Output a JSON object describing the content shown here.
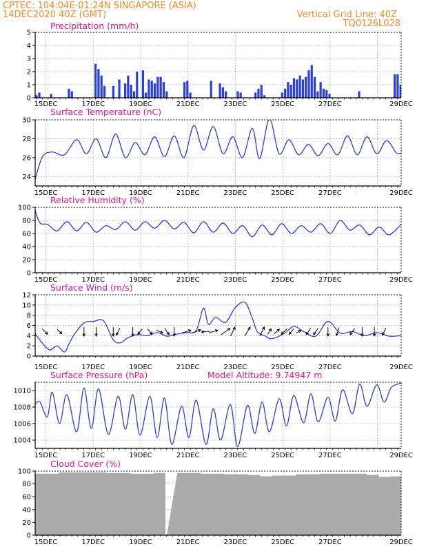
{
  "header": {
    "line1_left": "CPTEC:   104:04E-01:24N   SINGAPORE (ASIA)",
    "line2_left": "14DEC2020 40Z (GMT)",
    "line1_right": "Vertical Grid Line: 40Z",
    "line2_right": "TQ0126L028"
  },
  "colors": {
    "header": "#f08a2a",
    "title": "#e0148c",
    "series": "#2b3fd9",
    "cloud": "#ababab",
    "arrow": "#000000"
  },
  "x_tick_labels": [
    "15DEC",
    "17DEC",
    "19DEC",
    "21DEC",
    "23DEC",
    "25DEC",
    "27DEC",
    "29DEC"
  ],
  "chart_data": [
    {
      "type": "bar",
      "title": "Precipitation (mm/h)",
      "ylim": [
        0,
        5
      ],
      "yticks": [
        0,
        1,
        2,
        3,
        4,
        5
      ],
      "x_start": "14DEC2020 00Z",
      "x_step_hours": 3,
      "values": [
        0.2,
        0.4,
        0,
        0,
        0,
        0.3,
        0,
        0,
        0,
        0,
        0,
        0.7,
        0.5,
        0,
        0,
        0,
        0,
        0,
        0,
        0,
        2.6,
        2.2,
        1.7,
        0.9,
        0,
        0,
        0.9,
        0,
        1.4,
        0,
        1.1,
        1.7,
        1.0,
        0.5,
        2.0,
        0,
        2.1,
        0.4,
        1.4,
        1.3,
        1.1,
        1.6,
        1.6,
        1.2,
        0.5,
        0,
        0,
        0,
        0,
        0,
        1.2,
        1.3,
        0.4,
        0,
        0,
        0,
        0,
        0,
        0,
        1.3,
        0,
        0,
        1.1,
        0.8,
        0.5,
        0,
        0,
        0,
        0.5,
        0.4,
        0,
        0,
        0,
        0,
        0.4,
        0.7,
        1.0,
        0.2,
        0,
        0,
        0,
        0,
        0,
        0.4,
        0.7,
        1.2,
        1.0,
        1.5,
        1.4,
        1.7,
        1.4,
        1.6,
        2.1,
        2.5,
        1.6,
        0.5,
        1.2,
        0.7,
        0.6,
        0.3,
        0,
        0,
        0,
        0,
        0,
        0,
        0,
        0,
        0,
        0.5,
        0,
        0,
        0,
        0,
        0,
        0,
        0,
        0,
        0,
        0,
        0,
        1.8,
        1.8,
        1.0,
        0,
        0,
        0,
        0,
        0,
        0,
        0,
        0,
        0,
        0,
        0,
        0,
        0,
        0,
        0,
        0,
        0,
        0,
        0,
        0,
        0,
        0,
        0,
        0,
        0,
        0,
        0,
        0,
        0,
        0,
        0,
        0,
        0,
        0,
        0,
        0,
        0,
        0,
        0,
        0,
        0,
        0,
        0,
        0,
        0,
        0,
        0,
        0,
        0,
        0,
        0
      ]
    },
    {
      "type": "line",
      "title": "Surface Temperature (nC)",
      "ylim": [
        23,
        30
      ],
      "yticks": [
        24,
        26,
        28,
        30
      ],
      "x": [
        0,
        0.3,
        0.7,
        1.2,
        1.7,
        2.1,
        2.5,
        2.9,
        3.3,
        3.7,
        4.1,
        4.5,
        4.9,
        5.3,
        5.7,
        6.1,
        6.5,
        6.9,
        7.3,
        7.7,
        8.1,
        8.5,
        8.9,
        9.2,
        9.6,
        10.0,
        10.4,
        10.8,
        11.2,
        11.6,
        12.0,
        12.4,
        12.8,
        13.2,
        13.6,
        14.0,
        14.4,
        14.8,
        15.0
      ],
      "values": [
        23.7,
        26.1,
        26.6,
        26.3,
        27.9,
        26.4,
        28.0,
        26.0,
        28.5,
        26.0,
        27.6,
        26.3,
        28.2,
        26.1,
        28.3,
        26.0,
        29.4,
        26.8,
        29.3,
        26.4,
        28.2,
        26.0,
        29.1,
        25.9,
        30.1,
        26.4,
        27.9,
        26.3,
        27.4,
        26.2,
        27.5,
        26.3,
        28.3,
        26.3,
        28.2,
        26.4,
        27.8,
        26.5,
        26.5
      ]
    },
    {
      "type": "line",
      "title": "Relative Humidity (%)",
      "ylim": [
        0,
        100
      ],
      "yticks": [
        0,
        20,
        40,
        60,
        80,
        100
      ],
      "x": [
        0,
        0.2,
        0.5,
        0.9,
        1.3,
        1.7,
        2.1,
        2.5,
        2.9,
        3.3,
        3.7,
        4.1,
        4.5,
        4.9,
        5.3,
        5.7,
        6.1,
        6.5,
        6.9,
        7.3,
        7.7,
        8.1,
        8.5,
        8.9,
        9.3,
        9.7,
        10.1,
        10.5,
        10.9,
        11.3,
        11.7,
        12.1,
        12.5,
        12.9,
        13.3,
        13.7,
        14.1,
        14.5,
        15.0
      ],
      "values": [
        95,
        76,
        74,
        64,
        78,
        64,
        77,
        62,
        72,
        66,
        78,
        65,
        78,
        68,
        80,
        67,
        77,
        61,
        78,
        62,
        76,
        60,
        72,
        55,
        73,
        58,
        75,
        60,
        72,
        62,
        75,
        60,
        80,
        65,
        73,
        58,
        70,
        58,
        74
      ]
    },
    {
      "type": "line",
      "title": "Surface Wind (m/s)",
      "ylim": [
        0,
        12
      ],
      "yticks": [
        0,
        2,
        4,
        6,
        8,
        10,
        12
      ],
      "x": [
        0,
        0.3,
        0.6,
        0.9,
        1.2,
        1.4,
        1.6,
        2.0,
        2.4,
        2.8,
        3.2,
        3.5,
        3.8,
        4.2,
        4.6,
        5.0,
        5.4,
        5.8,
        6.2,
        6.6,
        6.9,
        7.1,
        7.4,
        7.8,
        8.2,
        8.6,
        8.9,
        9.1,
        9.4,
        9.7,
        10.2,
        10.6,
        11.0,
        11.5,
        12.0,
        12.5,
        13.0,
        13.5,
        14.0,
        14.5,
        15.0
      ],
      "values": [
        4.4,
        2.5,
        1.2,
        2.0,
        0.8,
        2.5,
        4.2,
        6.5,
        6.8,
        6.9,
        3.2,
        2.6,
        3.6,
        4.2,
        4.0,
        4.6,
        3.9,
        4.3,
        4.6,
        5.0,
        9.4,
        6.2,
        7.6,
        6.6,
        9.5,
        10.5,
        7.4,
        4.8,
        4.0,
        3.4,
        4.4,
        5.8,
        4.8,
        3.9,
        6.8,
        4.5,
        4.8,
        4.0,
        4.6,
        3.9,
        4.0
      ],
      "arrows": [
        {
          "x": 0.4,
          "u": 0.6,
          "v": -0.6
        },
        {
          "x": 1.0,
          "u": 0.5,
          "v": -0.5
        },
        {
          "x": 2.0,
          "u": 0,
          "v": -1
        },
        {
          "x": 2.5,
          "u": 0,
          "v": -1
        },
        {
          "x": 3.2,
          "u": 0,
          "v": -1
        },
        {
          "x": 3.4,
          "u": -0.4,
          "v": -0.8
        },
        {
          "x": 4.0,
          "u": 0,
          "v": -1
        },
        {
          "x": 4.3,
          "u": -0.5,
          "v": -0.6
        },
        {
          "x": 4.7,
          "u": 0.5,
          "v": -0.6
        },
        {
          "x": 5.1,
          "u": 0.7,
          "v": -0.3
        },
        {
          "x": 5.4,
          "u": 0.5,
          "v": -0.7
        },
        {
          "x": 5.7,
          "u": 0,
          "v": -1
        },
        {
          "x": 6.2,
          "u": 1,
          "v": 0.3
        },
        {
          "x": 6.6,
          "u": 1,
          "v": 0.4
        },
        {
          "x": 7.0,
          "u": -1,
          "v": -0.1
        },
        {
          "x": 7.3,
          "u": 1,
          "v": 0.3
        },
        {
          "x": 7.8,
          "u": 1,
          "v": 0.7
        },
        {
          "x": 8.1,
          "u": 0.5,
          "v": 1
        },
        {
          "x": 8.7,
          "u": 0.6,
          "v": 1
        },
        {
          "x": 9.3,
          "u": 0.5,
          "v": 1
        },
        {
          "x": 9.6,
          "u": 0.4,
          "v": 0.6
        },
        {
          "x": 9.9,
          "u": 0.6,
          "v": 0.5
        },
        {
          "x": 10.2,
          "u": -0.6,
          "v": -0.6
        },
        {
          "x": 10.5,
          "u": -0.5,
          "v": -0.6
        },
        {
          "x": 10.8,
          "u": 0.5,
          "v": 0.3
        },
        {
          "x": 11.2,
          "u": -0.5,
          "v": -0.7
        },
        {
          "x": 11.5,
          "u": -0.5,
          "v": -0.7
        },
        {
          "x": 12.0,
          "u": 0,
          "v": -1
        },
        {
          "x": 12.4,
          "u": -0.3,
          "v": -0.9
        },
        {
          "x": 13.0,
          "u": -0.5,
          "v": -0.7
        },
        {
          "x": 13.4,
          "u": 0,
          "v": -1
        },
        {
          "x": 13.9,
          "u": 0,
          "v": -1
        },
        {
          "x": 14.3,
          "u": -0.4,
          "v": -0.8
        }
      ]
    },
    {
      "type": "line",
      "title": "Surface Pressure (hPa)",
      "annotation": "Model Altitude: 9.74947 m",
      "ylim": [
        1003,
        1011
      ],
      "yticks": [
        1004,
        1006,
        1008,
        1010
      ],
      "x": [
        0,
        0.2,
        0.5,
        0.7,
        1.0,
        1.3,
        1.7,
        2.0,
        2.3,
        2.6,
        3.0,
        3.4,
        3.7,
        4.0,
        4.3,
        4.7,
        5.0,
        5.3,
        5.6,
        6.0,
        6.3,
        6.6,
        7.0,
        7.3,
        7.6,
        8.0,
        8.3,
        8.7,
        9.0,
        9.3,
        9.6,
        10.0,
        10.3,
        10.6,
        11.0,
        11.3,
        11.6,
        12.0,
        12.3,
        12.6,
        13.0,
        13.3,
        13.6,
        14.0,
        14.3,
        14.6,
        15.0
      ],
      "values": [
        1008.4,
        1008.6,
        1006.8,
        1009.8,
        1006.0,
        1009.5,
        1005.0,
        1010.3,
        1005.4,
        1010.2,
        1004.7,
        1009.3,
        1005.3,
        1009.5,
        1004.6,
        1009.3,
        1004.3,
        1009.1,
        1003.5,
        1008.1,
        1004.3,
        1008.8,
        1003.5,
        1007.8,
        1004.0,
        1008.3,
        1003.2,
        1008.2,
        1004.8,
        1008.6,
        1005.0,
        1009.0,
        1005.7,
        1009.4,
        1006.1,
        1009.6,
        1006.2,
        1009.2,
        1006.3,
        1010.1,
        1007.2,
        1010.8,
        1008.1,
        1010.7,
        1008.6,
        1010.4,
        1010.9
      ]
    },
    {
      "type": "bar",
      "title": "Cloud Cover (%)",
      "ylim": [
        0,
        100
      ],
      "yticks": [
        0,
        20,
        40,
        60,
        80,
        100
      ],
      "x": [
        0,
        1,
        2,
        3,
        4,
        5,
        5.45,
        5.5,
        6,
        7,
        7.5,
        8,
        9,
        9.5,
        10,
        11,
        12,
        13,
        14,
        14.5,
        15
      ],
      "values": [
        96,
        98,
        98,
        97,
        96,
        97,
        97,
        0,
        97,
        96,
        96,
        95,
        94,
        92,
        93,
        95,
        96,
        96,
        94,
        91,
        92
      ]
    }
  ]
}
